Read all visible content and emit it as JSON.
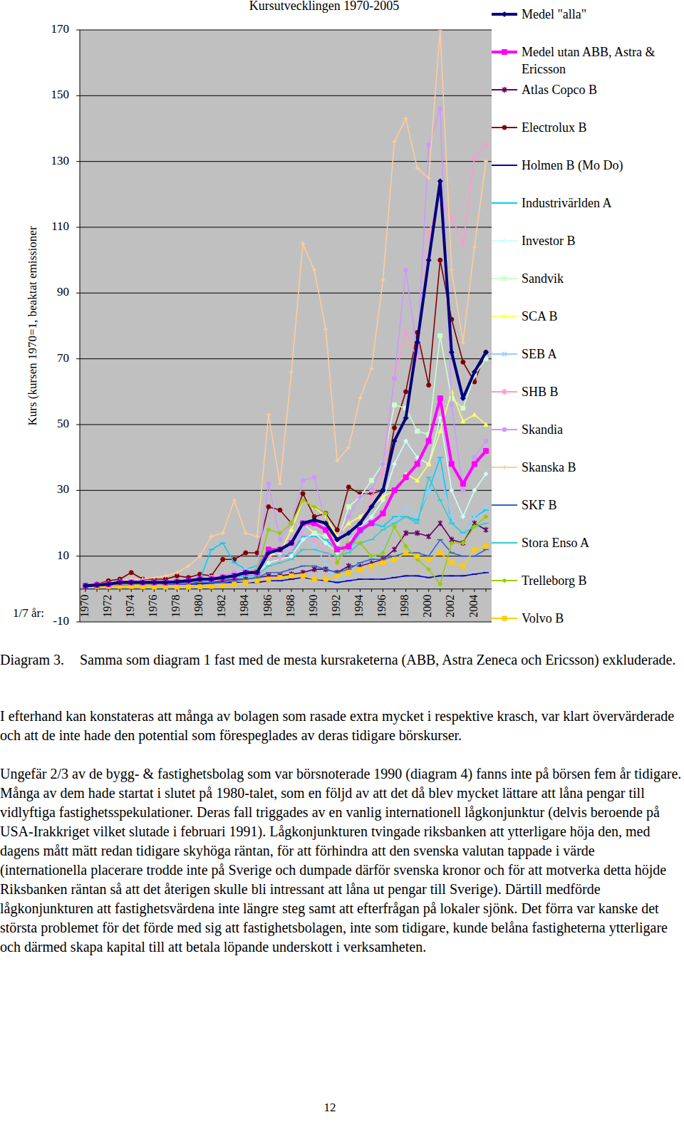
{
  "chart_data": {
    "type": "line",
    "title": "Kursutvecklingen 1970-2005",
    "ylabel": "Kurs  (kursen 1970=1, beaktat emissioner",
    "annotations": [
      "1/7 år:"
    ],
    "categories": [
      "1970",
      null,
      "1972",
      null,
      "1974",
      null,
      "1976",
      null,
      "1978",
      null,
      "1980",
      null,
      "1982",
      null,
      "1984",
      null,
      "1986",
      null,
      "1988",
      null,
      "1990",
      null,
      "1992",
      null,
      "1994",
      null,
      "1996",
      null,
      "1998",
      null,
      "2000",
      null,
      "2002",
      null,
      "2004",
      null
    ],
    "ylim": [
      -10,
      170
    ],
    "yticks": [
      -10,
      10,
      30,
      50,
      70,
      90,
      110,
      130,
      150,
      170
    ],
    "grid": true,
    "legend": "right",
    "series": [
      {
        "name": "Medel \"alla\"",
        "color": "#000080",
        "marker": "diamond",
        "values": [
          1,
          1.2,
          1.5,
          2,
          2,
          2,
          2,
          2,
          2.2,
          2.5,
          3,
          3,
          3.5,
          4,
          5,
          5,
          11,
          12,
          14,
          20,
          21,
          20,
          15,
          17,
          20,
          25,
          30,
          45,
          52,
          75,
          100,
          124,
          72,
          58,
          66,
          72
        ]
      },
      {
        "name": "Medel utan ABB, Astra & Ericsson",
        "color": "#FF00FF",
        "marker": "square",
        "values": [
          1,
          1.2,
          1.5,
          2,
          2,
          2,
          2,
          2,
          2.2,
          2.5,
          3,
          3,
          3.5,
          4,
          5,
          5,
          12,
          12,
          14,
          20,
          20,
          18,
          12,
          13,
          18,
          20,
          23,
          30,
          34,
          38,
          45,
          58,
          38,
          32,
          38,
          42
        ]
      },
      {
        "name": "Atlas Copco B",
        "color": "#660066",
        "marker": "star",
        "values": [
          1,
          1,
          1.2,
          1.5,
          1.5,
          1.5,
          1.5,
          1.5,
          1.5,
          2,
          2,
          2,
          2.5,
          3,
          3,
          3.5,
          4,
          4,
          4.5,
          5,
          6,
          6,
          5,
          7,
          7,
          8,
          9,
          12,
          17,
          17,
          16,
          20,
          15,
          14,
          20,
          18
        ]
      },
      {
        "name": "Electrolux B",
        "color": "#800000",
        "marker": "circle",
        "values": [
          1,
          1.5,
          2.5,
          3,
          5,
          3,
          3,
          3,
          4,
          3.5,
          4.5,
          4,
          9,
          9,
          11,
          11,
          25,
          24,
          20,
          29,
          22,
          23,
          18,
          31,
          29,
          29,
          30,
          49,
          60,
          78,
          62,
          100,
          82,
          69,
          63,
          72
        ]
      },
      {
        "name": "Holmen B (Mo Do)",
        "color": "#0000CC",
        "marker": "dash",
        "values": [
          1,
          1,
          1,
          1.2,
          1.5,
          1.5,
          1.5,
          1.5,
          1.5,
          1.5,
          1.5,
          1.8,
          2,
          2,
          2,
          2,
          2.5,
          2.5,
          3,
          3.5,
          3,
          2.5,
          2,
          2.5,
          3,
          3,
          3,
          3.5,
          4,
          4,
          3.5,
          4,
          4,
          4,
          4.5,
          5
        ]
      },
      {
        "name": "Industrivärlden A",
        "color": "#00CCFF",
        "marker": "dash",
        "values": [
          1,
          1,
          1.2,
          1.5,
          2,
          2,
          2,
          2,
          2.5,
          3,
          3,
          12,
          14,
          8,
          6,
          7,
          12,
          10,
          11,
          16,
          16,
          15,
          12,
          12,
          17,
          20,
          19,
          22,
          22,
          21,
          30,
          40,
          20,
          17,
          22,
          24
        ]
      },
      {
        "name": "Investor B",
        "color": "#CCFFFF",
        "marker": "diamond",
        "values": [
          1,
          1,
          1.2,
          1.5,
          1.5,
          1.5,
          1.5,
          1.5,
          2,
          2,
          2.5,
          3,
          3.5,
          4,
          4.5,
          5,
          8,
          9,
          10,
          15,
          17,
          14,
          11,
          14,
          19,
          22,
          27,
          38,
          45,
          40,
          38,
          52,
          30,
          22,
          30,
          35
        ]
      },
      {
        "name": "Sandvik",
        "color": "#CCFFCC",
        "marker": "square",
        "values": [
          1,
          1,
          1.2,
          1.5,
          2,
          2,
          2,
          2,
          2,
          2.5,
          3,
          3,
          3.5,
          4,
          5,
          6,
          10,
          12,
          14,
          20,
          17,
          16,
          14,
          25,
          28,
          33,
          38,
          56,
          55,
          48,
          47,
          77,
          58,
          55,
          65,
          70
        ]
      },
      {
        "name": "SCA B",
        "color": "#FFFF66",
        "marker": "triangle",
        "values": [
          1,
          1,
          1.2,
          1.5,
          2,
          2,
          2,
          2,
          2,
          2.5,
          3,
          3.5,
          4,
          5,
          5,
          6,
          10,
          11,
          18,
          27,
          25,
          22,
          16,
          20,
          22,
          25,
          28,
          30,
          35,
          33,
          38,
          48,
          60,
          51,
          53,
          50
        ]
      },
      {
        "name": "SEB A",
        "color": "#99CCFF",
        "marker": "x",
        "values": [
          1,
          1,
          1.2,
          1.5,
          1.5,
          1.5,
          1.5,
          2,
          2,
          2.5,
          3,
          3.5,
          4,
          5,
          6,
          6,
          12,
          10,
          14,
          18,
          13,
          8,
          3,
          5,
          8,
          9,
          12,
          20,
          25,
          22,
          30,
          35,
          22,
          17,
          22,
          25
        ]
      },
      {
        "name": "SHB B",
        "color": "#FF99CC",
        "marker": "star",
        "values": [
          1,
          1,
          1.2,
          1.5,
          1.5,
          1.5,
          1.5,
          2,
          2,
          2.5,
          3,
          3.5,
          4,
          5,
          5,
          6,
          10,
          9,
          12,
          17,
          15,
          11,
          8,
          13,
          20,
          28,
          35,
          64,
          78,
          70,
          108,
          120,
          113,
          105,
          131,
          135
        ]
      },
      {
        "name": "Skandia",
        "color": "#CC99FF",
        "marker": "circle",
        "values": [
          1,
          1,
          1.2,
          1.5,
          1.5,
          1.5,
          1.5,
          2,
          2,
          2.5,
          3,
          3.5,
          4,
          5,
          5,
          6,
          32,
          15,
          20,
          33,
          34,
          20,
          15,
          22,
          28,
          30,
          38,
          64,
          97,
          72,
          135,
          146,
          56,
          30,
          40,
          45
        ]
      },
      {
        "name": "Skanska B",
        "color": "#FFCC99",
        "marker": "plus",
        "values": [
          1,
          1.5,
          2,
          2.5,
          3,
          3,
          3.5,
          4,
          5,
          7,
          10,
          16,
          17,
          27,
          17,
          16,
          53,
          32,
          66,
          105,
          97,
          79,
          39,
          43,
          58,
          67,
          94,
          136,
          143,
          128,
          125,
          170,
          97,
          75,
          104,
          130
        ]
      },
      {
        "name": "SKF B",
        "color": "#3366CC",
        "marker": "dash",
        "values": [
          1,
          1,
          1,
          1.2,
          1.5,
          1.5,
          1.5,
          1.5,
          1.5,
          1.5,
          2,
          2,
          2,
          2.5,
          3,
          3.5,
          5,
          5,
          6,
          7,
          7,
          6,
          5,
          6,
          8,
          9,
          9,
          10,
          11,
          11,
          10,
          15,
          11,
          10,
          10,
          12
        ]
      },
      {
        "name": "Stora Enso A",
        "color": "#33CCCC",
        "marker": "dash",
        "values": [
          1,
          1,
          1,
          1.2,
          1.5,
          1.5,
          1.5,
          1.5,
          2,
          2,
          2.5,
          3,
          3,
          3.5,
          4,
          4,
          7,
          8,
          9,
          12,
          12,
          11,
          10,
          11,
          14,
          15,
          18,
          20,
          22,
          20,
          34,
          27,
          20,
          17,
          19,
          20
        ]
      },
      {
        "name": "Trelleborg B",
        "color": "#99CC00",
        "marker": "diamond",
        "values": [
          1,
          1,
          1.2,
          1.5,
          1.5,
          1.5,
          1.5,
          1.5,
          2,
          2,
          2.5,
          3,
          3.5,
          4,
          5,
          6,
          18,
          17,
          20,
          27,
          25,
          23,
          8,
          14,
          14,
          10,
          11,
          19,
          13,
          9,
          6,
          1.5,
          14,
          14,
          19,
          22
        ]
      },
      {
        "name": "Volvo B",
        "color": "#FFCC00",
        "marker": "square",
        "values": [
          1,
          0.8,
          0.8,
          0.8,
          0.8,
          0.7,
          0.6,
          0.6,
          0.6,
          0.6,
          0.7,
          0.8,
          1,
          1.5,
          2,
          2.5,
          3,
          3.5,
          4,
          4,
          3,
          3,
          4,
          5,
          6,
          7,
          8,
          9,
          11,
          10,
          9,
          11,
          8,
          7,
          12,
          13
        ]
      }
    ]
  },
  "caption": {
    "label": "Diagram 3.",
    "text": "Samma som diagram 1 fast med de mesta kursraketerna (ABB, Astra Zeneca och Ericsson) exkluderade."
  },
  "paragraphs": [
    "I efterhand kan konstateras att många av bolagen som rasade extra mycket i respektive krasch, var klart övervärderade och att de inte hade den potential som förespeglades av deras tidigare börskurser.",
    "Ungefär 2/3 av de bygg- & fastighetsbolag som var börsnoterade 1990 (diagram 4) fanns inte på börsen fem år tidigare. Många av dem hade startat i slutet på 1980-talet, som en följd av att det då blev mycket lättare att låna pengar till vidlyftiga fastighetsspekulationer. Deras fall triggades av en vanlig internationell lågkonjunktur (delvis beroende på USA-Irakkriget vilket slutade i februari 1991). Lågkonjunkturen tvingade riksbanken att ytterligare höja den, med dagens mått mätt redan tidigare skyhöga räntan, för att förhindra att den svenska valutan tappade i värde (internationella placerare trodde inte på Sverige och dumpade därför svenska kronor och för att motverka detta höjde Riksbanken räntan så att det återigen skulle bli intressant att låna ut pengar till Sverige). Därtill medförde lågkonjunkturen att fastighetsvärdena inte längre steg samt att efterfrågan på lokaler sjönk. Det förra var kanske det största problemet för det förde med sig att fastighetsbolagen, inte som tidigare, kunde belåna fastigheterna ytterligare och därmed skapa kapital till att betala löpande underskott i verksamheten."
  ],
  "page_number": "12"
}
